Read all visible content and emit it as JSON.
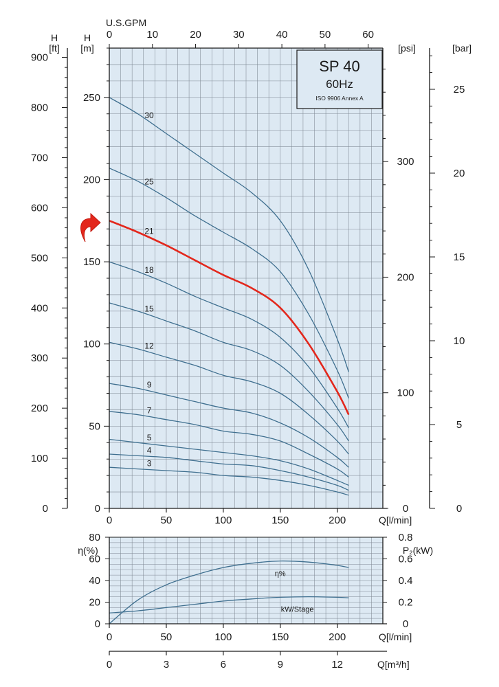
{
  "title_box": {
    "model": "SP 40",
    "frequency": "60Hz",
    "standard": "ISO 9906 Annex A"
  },
  "colors": {
    "plot_bg": "#dde9f3",
    "grid": "#7f8994",
    "curve": "#3f6f8f",
    "highlight": "#e3271c",
    "axis": "#1a1a1a"
  },
  "chart_data": [
    {
      "type": "line",
      "title": "SP 40 60Hz ISO 9906 Annex A",
      "xlabel": "Q[l/min]",
      "ylabel": "H [m]",
      "xlim": [
        0,
        240
      ],
      "ylim": [
        0,
        280
      ],
      "grid": true,
      "x_ticks": [
        0,
        50,
        100,
        150,
        200
      ],
      "y_ticks": [
        0,
        50,
        100,
        150,
        200,
        250
      ],
      "secondary_axes": {
        "top": {
          "label": "U.S.GPM",
          "ticks": [
            0,
            10,
            20,
            30,
            40,
            50,
            60
          ]
        },
        "left": {
          "label": "H [ft]",
          "ticks": [
            0,
            100,
            200,
            300,
            400,
            500,
            600,
            700,
            800,
            900
          ]
        },
        "right_psi": {
          "label": "[psi]",
          "ticks": [
            0,
            100,
            200,
            300
          ]
        },
        "right_bar": {
          "label": "[bar]",
          "ticks": [
            0,
            5,
            10,
            15,
            20,
            25
          ]
        }
      },
      "highlighted_series": "21",
      "x": [
        0,
        25,
        50,
        75,
        100,
        125,
        150,
        175,
        200,
        210
      ],
      "series": [
        {
          "name": "30",
          "values": [
            250,
            240,
            228,
            216,
            204,
            192,
            175,
            145,
            103,
            83
          ]
        },
        {
          "name": "25",
          "values": [
            207,
            199,
            189,
            178,
            168,
            158,
            144,
            118,
            84,
            67
          ]
        },
        {
          "name": "21",
          "values": [
            175,
            168,
            160,
            151,
            142,
            134,
            122,
            100,
            71,
            57
          ]
        },
        {
          "name": "18",
          "values": [
            150,
            144,
            137,
            129,
            122,
            115,
            104,
            86,
            61,
            49
          ]
        },
        {
          "name": "15",
          "values": [
            125,
            120,
            114,
            108,
            101,
            96,
            87,
            71,
            51,
            41
          ]
        },
        {
          "name": "12",
          "values": [
            101,
            97,
            92,
            87,
            81,
            77,
            70,
            57,
            41,
            33
          ]
        },
        {
          "name": "9",
          "values": [
            76,
            73,
            69,
            65,
            61,
            58,
            52,
            43,
            31,
            25
          ]
        },
        {
          "name": "7",
          "values": [
            59,
            57,
            54,
            51,
            47,
            45,
            41,
            33,
            24,
            19
          ]
        },
        {
          "name": "5",
          "values": [
            42,
            40,
            38,
            36,
            34,
            32,
            29,
            24,
            17,
            14
          ]
        },
        {
          "name": "4",
          "values": [
            33,
            32,
            31,
            29,
            27,
            26,
            23,
            19,
            14,
            11
          ]
        },
        {
          "name": "3",
          "values": [
            25,
            24,
            23,
            22,
            20,
            19,
            17,
            14,
            10,
            8
          ]
        }
      ]
    },
    {
      "type": "line",
      "xlabel": "Q[l/min]",
      "ylabel": "η(%)",
      "xlim": [
        0,
        240
      ],
      "ylim": [
        0,
        80
      ],
      "grid": true,
      "x_ticks": [
        0,
        50,
        100,
        150,
        200
      ],
      "y_ticks": [
        0,
        20,
        40,
        60,
        80
      ],
      "secondary_axes": {
        "right": {
          "label": "P₂(kW)",
          "ticks": [
            "0",
            "0.2",
            "0.4",
            "0.6",
            "0.8"
          ],
          "range": [
            0,
            0.8
          ]
        },
        "bottom2": {
          "label": "Q[m³/h]",
          "ticks": [
            0,
            3,
            6,
            9,
            12
          ]
        }
      },
      "x": [
        0,
        25,
        50,
        75,
        100,
        125,
        150,
        175,
        200,
        210
      ],
      "series": [
        {
          "name": "η%",
          "axis": "left",
          "values": [
            0,
            22,
            36,
            45,
            52,
            56,
            58,
            57,
            54,
            52
          ]
        },
        {
          "name": "kW/Stage",
          "axis": "right",
          "values": [
            0.1,
            0.12,
            0.15,
            0.18,
            0.21,
            0.23,
            0.245,
            0.25,
            0.245,
            0.24
          ]
        }
      ]
    }
  ]
}
